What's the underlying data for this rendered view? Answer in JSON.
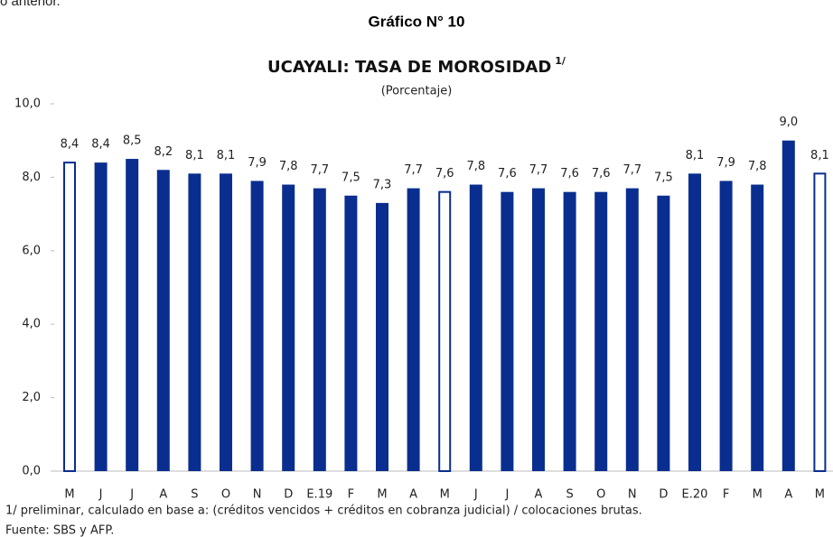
{
  "header": {
    "fragment": "o anterior.",
    "figure_label": "Gráfico N° 10"
  },
  "chart_data": {
    "type": "bar",
    "title": "UCAYALI: TASA DE MOROSIDAD",
    "title_note": "1/",
    "subtitle": "(Porcentaje)",
    "categories": [
      "M",
      "J",
      "J",
      "A",
      "S",
      "O",
      "N",
      "D",
      "E.19",
      "F",
      "M",
      "A",
      "M",
      "J",
      "J",
      "A",
      "S",
      "O",
      "N",
      "D",
      "E.20",
      "F",
      "M",
      "A",
      "M"
    ],
    "values": [
      8.4,
      8.4,
      8.5,
      8.2,
      8.1,
      8.1,
      7.9,
      7.8,
      7.7,
      7.5,
      7.3,
      7.7,
      7.6,
      7.8,
      7.6,
      7.7,
      7.6,
      7.6,
      7.7,
      7.5,
      8.1,
      7.9,
      7.8,
      9.0,
      8.1
    ],
    "value_labels": [
      "8,4",
      "8,4",
      "8,5",
      "8,2",
      "8,1",
      "8,1",
      "7,9",
      "7,8",
      "7,7",
      "7,5",
      "7,3",
      "7,7",
      "7,6",
      "7,8",
      "7,6",
      "7,7",
      "7,6",
      "7,6",
      "7,7",
      "7,5",
      "8,1",
      "7,9",
      "7,8",
      "9,0",
      "8,1"
    ],
    "color": "#0a2e8f",
    "outline_only": [
      0,
      12,
      24
    ],
    "ylim": [
      0,
      10
    ],
    "yticks": [
      {
        "value": 0,
        "label": "0,0"
      },
      {
        "value": 2,
        "label": "2,0"
      },
      {
        "value": 4,
        "label": "4,0"
      },
      {
        "value": 6,
        "label": "6,0"
      },
      {
        "value": 8,
        "label": "8,0"
      },
      {
        "value": 10,
        "label": "10,0"
      }
    ],
    "grid": false
  },
  "footer": {
    "note": "1/ preliminar, calculado en base a: (créditos vencidos + créditos en cobranza judicial) / colocaciones brutas.",
    "source": "Fuente: SBS y AFP."
  }
}
